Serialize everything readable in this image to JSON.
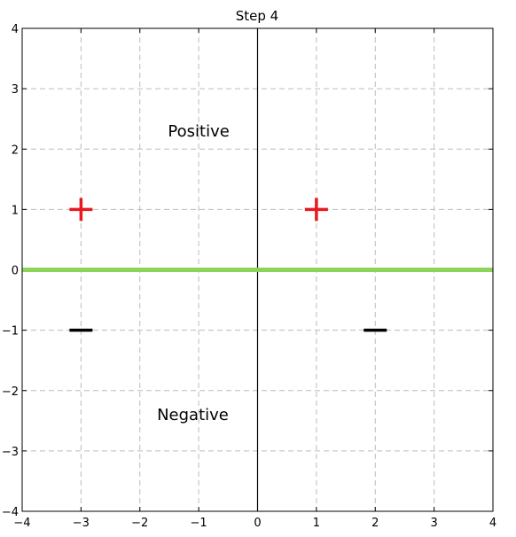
{
  "chart_data": {
    "type": "scatter",
    "title": "Step 4",
    "xlabel": "",
    "ylabel": "",
    "xlim": [
      -4,
      4
    ],
    "ylim": [
      -4,
      4
    ],
    "grid": true,
    "x_ticks": [
      -4,
      -3,
      -2,
      -1,
      0,
      1,
      2,
      3,
      4
    ],
    "y_ticks": [
      -4,
      -3,
      -2,
      -1,
      0,
      1,
      2,
      3,
      4
    ],
    "x_tick_labels": [
      "−4",
      "−3",
      "−2",
      "−1",
      "0",
      "1",
      "2",
      "3",
      "4"
    ],
    "y_tick_labels": [
      "−4",
      "−3",
      "−2",
      "−1",
      "0",
      "1",
      "2",
      "3",
      "4"
    ],
    "series": [
      {
        "marker": "plus",
        "color": "#e8191f",
        "points": [
          {
            "x": -3,
            "y": 1
          },
          {
            "x": 1,
            "y": 1
          }
        ]
      },
      {
        "marker": "minus",
        "color": "#000000",
        "points": [
          {
            "x": -3,
            "y": -1
          },
          {
            "x": 2,
            "y": -1
          }
        ]
      }
    ],
    "separator_line": {
      "y": 0,
      "color": "#8cd35a"
    },
    "annotations": [
      {
        "text": "Positive",
        "x": -1,
        "y": 2.3
      },
      {
        "text": "Negative",
        "x": -1.1,
        "y": -2.4
      }
    ]
  }
}
